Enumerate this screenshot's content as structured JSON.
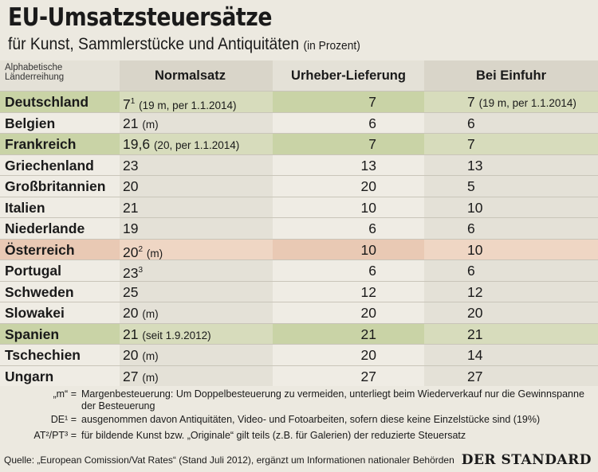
{
  "title": "EU-Umsatzsteuersätze",
  "subtitle": "für Kunst, Sammlerstücke und Antiquitäten",
  "subtitle_unit": "(in Prozent)",
  "header": {
    "col0_line1": "Alphabetische",
    "col0_line2": "Länderreihung",
    "col1": "Normalsatz",
    "col2": "Urheber-Lieferung",
    "col3": "Bei Einfuhr"
  },
  "rows": [
    {
      "country": "Deutschland",
      "normal": "7",
      "normal_sup": "1",
      "normal_note": "(19 m, per 1.1.2014)",
      "urheber": "7",
      "einfuhr": "7",
      "einfuhr_note": "(19 m, per 1.1.2014)"
    },
    {
      "country": "Belgien",
      "normal": "21",
      "normal_sup": "",
      "normal_note": "(m)",
      "urheber": "6",
      "einfuhr": "6",
      "einfuhr_note": ""
    },
    {
      "country": "Frankreich",
      "normal": "19,6",
      "normal_sup": "",
      "normal_note": "(20, per 1.1.2014)",
      "urheber": "7",
      "einfuhr": "7",
      "einfuhr_note": ""
    },
    {
      "country": "Griechenland",
      "normal": "23",
      "normal_sup": "",
      "normal_note": "",
      "urheber": "13",
      "einfuhr": "13",
      "einfuhr_note": ""
    },
    {
      "country": "Großbritannien",
      "normal": "20",
      "normal_sup": "",
      "normal_note": "",
      "urheber": "20",
      "einfuhr": "5",
      "einfuhr_note": ""
    },
    {
      "country": "Italien",
      "normal": "21",
      "normal_sup": "",
      "normal_note": "",
      "urheber": "10",
      "einfuhr": "10",
      "einfuhr_note": ""
    },
    {
      "country": "Niederlande",
      "normal": "19",
      "normal_sup": "",
      "normal_note": "",
      "urheber": "6",
      "einfuhr": "6",
      "einfuhr_note": ""
    },
    {
      "country": "Österreich",
      "normal": "20",
      "normal_sup": "2",
      "normal_note": "(m)",
      "urheber": "10",
      "einfuhr": "10",
      "einfuhr_note": ""
    },
    {
      "country": "Portugal",
      "normal": "23",
      "normal_sup": "3",
      "normal_note": "",
      "urheber": "6",
      "einfuhr": "6",
      "einfuhr_note": ""
    },
    {
      "country": "Schweden",
      "normal": "25",
      "normal_sup": "",
      "normal_note": "",
      "urheber": "12",
      "einfuhr": "12",
      "einfuhr_note": ""
    },
    {
      "country": "Slowakei",
      "normal": "20",
      "normal_sup": "",
      "normal_note": "(m)",
      "urheber": "20",
      "einfuhr": "20",
      "einfuhr_note": ""
    },
    {
      "country": "Spanien",
      "normal": "21",
      "normal_sup": "",
      "normal_note": "(seit 1.9.2012)",
      "urheber": "21",
      "einfuhr": "21",
      "einfuhr_note": ""
    },
    {
      "country": "Tschechien",
      "normal": "20",
      "normal_sup": "",
      "normal_note": "(m)",
      "urheber": "20",
      "einfuhr": "14",
      "einfuhr_note": ""
    },
    {
      "country": "Ungarn",
      "normal": "27",
      "normal_sup": "",
      "normal_note": "(m)",
      "urheber": "27",
      "einfuhr": "27",
      "einfuhr_note": ""
    }
  ],
  "row_highlight": [
    "green",
    "",
    "green",
    "",
    "",
    "",
    "",
    "rose",
    "",
    "",
    "",
    "green",
    "",
    ""
  ],
  "notes": [
    {
      "key": "„m“ =",
      "text": "Margenbesteuerung: Um Doppelbesteuerung zu vermeiden, unterliegt beim Wiederverkauf nur die Gewinnspanne der Besteuerung"
    },
    {
      "key": "DE¹ =",
      "text": "ausgenommen davon Antiquitäten, Video- und Fotoarbeiten, sofern diese keine Einzelstücke sind (19%)"
    },
    {
      "key": "AT²/PT³ =",
      "text": "für bildende Kunst bzw. „Originale“ gilt teils (z.B. für Galerien) der reduzierte Steuersatz"
    }
  ],
  "source": "Quelle: „European Comission/Vat Rates“ (Stand Juli 2012), ergänzt um Informationen nationaler Behörden",
  "brand": "DER STANDARD",
  "colors": {
    "highlight_green": "#c9d3a6",
    "highlight_rose": "#e9c9b4",
    "background": "#ece9e0"
  }
}
